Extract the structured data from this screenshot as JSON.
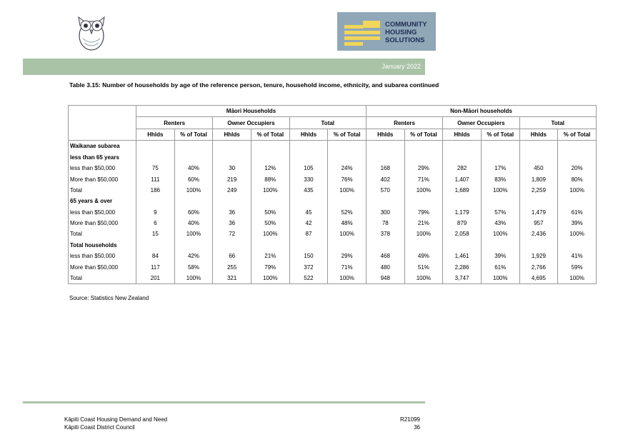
{
  "header": {
    "logo_text": [
      "COMMUNITY",
      "HOUSING",
      "SOLUTIONS"
    ],
    "date": "January 2022"
  },
  "title": "Table 3.15:  Number of households by age of the reference person, tenure, household income, ethnicity, and subarea continued",
  "table": {
    "groups": [
      "Māori Households",
      "Non-Māori households"
    ],
    "subgroups": [
      "Renters",
      "Owner Occupiers",
      "Total",
      "Renters",
      "Owner Occupiers",
      "Total"
    ],
    "columns": [
      "Hhlds",
      "% of Total",
      "Hhlds",
      "% of Total",
      "Hhlds",
      "% of Total",
      "Hhlds",
      "% of Total",
      "Hhlds",
      "% of Total",
      "Hhlds",
      "% of Total"
    ],
    "rows": [
      {
        "label": "Waikanae subarea"
      },
      {
        "label": "less than 65 years"
      },
      {
        "label": "less than $50,000",
        "cells": [
          "75",
          "40%",
          "30",
          "12%",
          "105",
          "24%",
          "168",
          "29%",
          "282",
          "17%",
          "450",
          "20%"
        ]
      },
      {
        "label": "More than $50,000",
        "cells": [
          "111",
          "60%",
          "219",
          "88%",
          "330",
          "76%",
          "402",
          "71%",
          "1,407",
          "83%",
          "1,809",
          "80%"
        ]
      },
      {
        "label": "Total",
        "cells": [
          "186",
          "100%",
          "249",
          "100%",
          "435",
          "100%",
          "570",
          "100%",
          "1,689",
          "100%",
          "2,259",
          "100%"
        ]
      },
      {
        "label": "65 years & over"
      },
      {
        "label": "less than $50,000",
        "cells": [
          "9",
          "60%",
          "36",
          "50%",
          "45",
          "52%",
          "300",
          "79%",
          "1,179",
          "57%",
          "1,479",
          "61%"
        ]
      },
      {
        "label": "More than $50,000",
        "cells": [
          "6",
          "40%",
          "36",
          "50%",
          "42",
          "48%",
          "78",
          "21%",
          "879",
          "43%",
          "957",
          "39%"
        ]
      },
      {
        "label": "Total",
        "cells": [
          "15",
          "100%",
          "72",
          "100%",
          "87",
          "100%",
          "378",
          "100%",
          "2,058",
          "100%",
          "2,436",
          "100%"
        ]
      },
      {
        "label": "Total households"
      },
      {
        "label": "less than $50,000",
        "cells": [
          "84",
          "42%",
          "66",
          "21%",
          "150",
          "29%",
          "468",
          "49%",
          "1,461",
          "39%",
          "1,929",
          "41%"
        ]
      },
      {
        "label": "More than $50,000",
        "cells": [
          "117",
          "58%",
          "255",
          "79%",
          "372",
          "71%",
          "480",
          "51%",
          "2,286",
          "61%",
          "2,766",
          "59%"
        ]
      },
      {
        "label": "Total",
        "cells": [
          "201",
          "100%",
          "321",
          "100%",
          "522",
          "100%",
          "948",
          "100%",
          "3,747",
          "100%",
          "4,695",
          "100%"
        ]
      }
    ]
  },
  "source": "Source:  Statistics New Zealand",
  "footer": {
    "left": [
      "Kāpiti Coast Housing Demand and Need",
      "Kāpiti Coast District Council"
    ],
    "right": [
      "R21099",
      "36"
    ]
  }
}
